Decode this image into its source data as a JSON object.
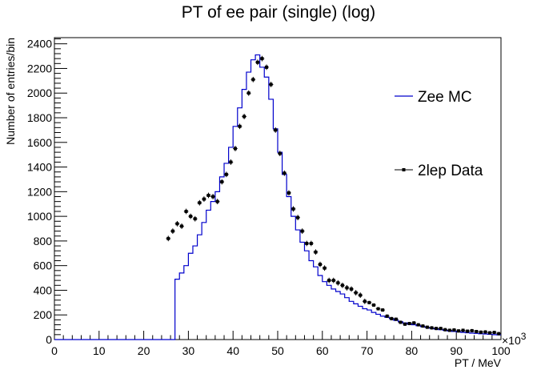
{
  "chart_data": {
    "type": "line",
    "title": "PT of ee pair (single) (log)",
    "xlabel": "PT / MeV",
    "ylabel": "Number of entries/bin",
    "x_exponent_label": "×10",
    "x_exponent_power": "3",
    "xlim": [
      0,
      100
    ],
    "ylim": [
      0,
      2450
    ],
    "x_ticks": [
      0,
      10,
      20,
      30,
      40,
      50,
      60,
      70,
      80,
      90,
      100
    ],
    "y_ticks": [
      0,
      200,
      400,
      600,
      800,
      1000,
      1200,
      1400,
      1600,
      1800,
      2000,
      2200,
      2400
    ],
    "legend": {
      "placement": "right",
      "entries": [
        "Zee MC",
        "2lep Data"
      ]
    },
    "series": [
      {
        "name": "Zee MC",
        "kind": "histogram-step",
        "color": "#0000cc",
        "bin_width": 1,
        "x_start": 0,
        "values": [
          0,
          0,
          0,
          0,
          0,
          0,
          0,
          0,
          0,
          0,
          0,
          0,
          0,
          0,
          0,
          0,
          0,
          0,
          0,
          0,
          0,
          0,
          0,
          0,
          0,
          0,
          0,
          490,
          540,
          600,
          700,
          760,
          850,
          950,
          1050,
          1120,
          1200,
          1320,
          1430,
          1560,
          1730,
          1880,
          2030,
          2170,
          2270,
          2310,
          2210,
          2130,
          1950,
          1710,
          1520,
          1340,
          1160,
          1000,
          890,
          790,
          720,
          640,
          590,
          520,
          470,
          440,
          410,
          390,
          370,
          340,
          310,
          290,
          270,
          250,
          240,
          220,
          205,
          190,
          180,
          170,
          155,
          145,
          135,
          125,
          120,
          112,
          105,
          98,
          92,
          86,
          80,
          75,
          70,
          66,
          62,
          58,
          55,
          52,
          50,
          47,
          45,
          43,
          40,
          38
        ]
      },
      {
        "name": "2lep Data",
        "kind": "points-with-errors",
        "color": "#000000",
        "error": 22,
        "x": [
          25.5,
          26.5,
          27.5,
          28.5,
          29.5,
          30.5,
          31.5,
          32.5,
          33.5,
          34.5,
          35.5,
          36.5,
          37.5,
          38.5,
          39.5,
          40.5,
          41.5,
          42.5,
          43.5,
          44.5,
          45.5,
          46.5,
          47.5,
          48.5,
          49.5,
          50.5,
          51.5,
          52.5,
          53.5,
          54.5,
          55.5,
          56.5,
          57.5,
          58.5,
          59.5,
          60.5,
          61.5,
          62.5,
          63.5,
          64.5,
          65.5,
          66.5,
          67.5,
          68.5,
          69.5,
          70.5,
          71.5,
          72.5,
          73.5,
          74.5,
          75.5,
          76.5,
          77.5,
          78.5,
          79.5,
          80.5,
          81.5,
          82.5,
          83.5,
          84.5,
          85.5,
          86.5,
          87.5,
          88.5,
          89.5,
          90.5,
          91.5,
          92.5,
          93.5,
          94.5,
          95.5,
          96.5,
          97.5,
          98.5,
          99.5
        ],
        "y": [
          820,
          880,
          940,
          920,
          1040,
          1000,
          980,
          1110,
          1140,
          1170,
          1160,
          1120,
          1280,
          1340,
          1440,
          1550,
          1730,
          1810,
          2000,
          2110,
          2250,
          2280,
          2210,
          2070,
          1700,
          1510,
          1350,
          1190,
          1060,
          990,
          880,
          780,
          780,
          710,
          610,
          580,
          480,
          480,
          460,
          440,
          420,
          410,
          380,
          360,
          310,
          300,
          280,
          250,
          240,
          190,
          170,
          165,
          140,
          125,
          130,
          135,
          120,
          110,
          100,
          95,
          90,
          90,
          80,
          75,
          78,
          70,
          75,
          68,
          72,
          65,
          60,
          62,
          55,
          58,
          48
        ]
      }
    ]
  }
}
